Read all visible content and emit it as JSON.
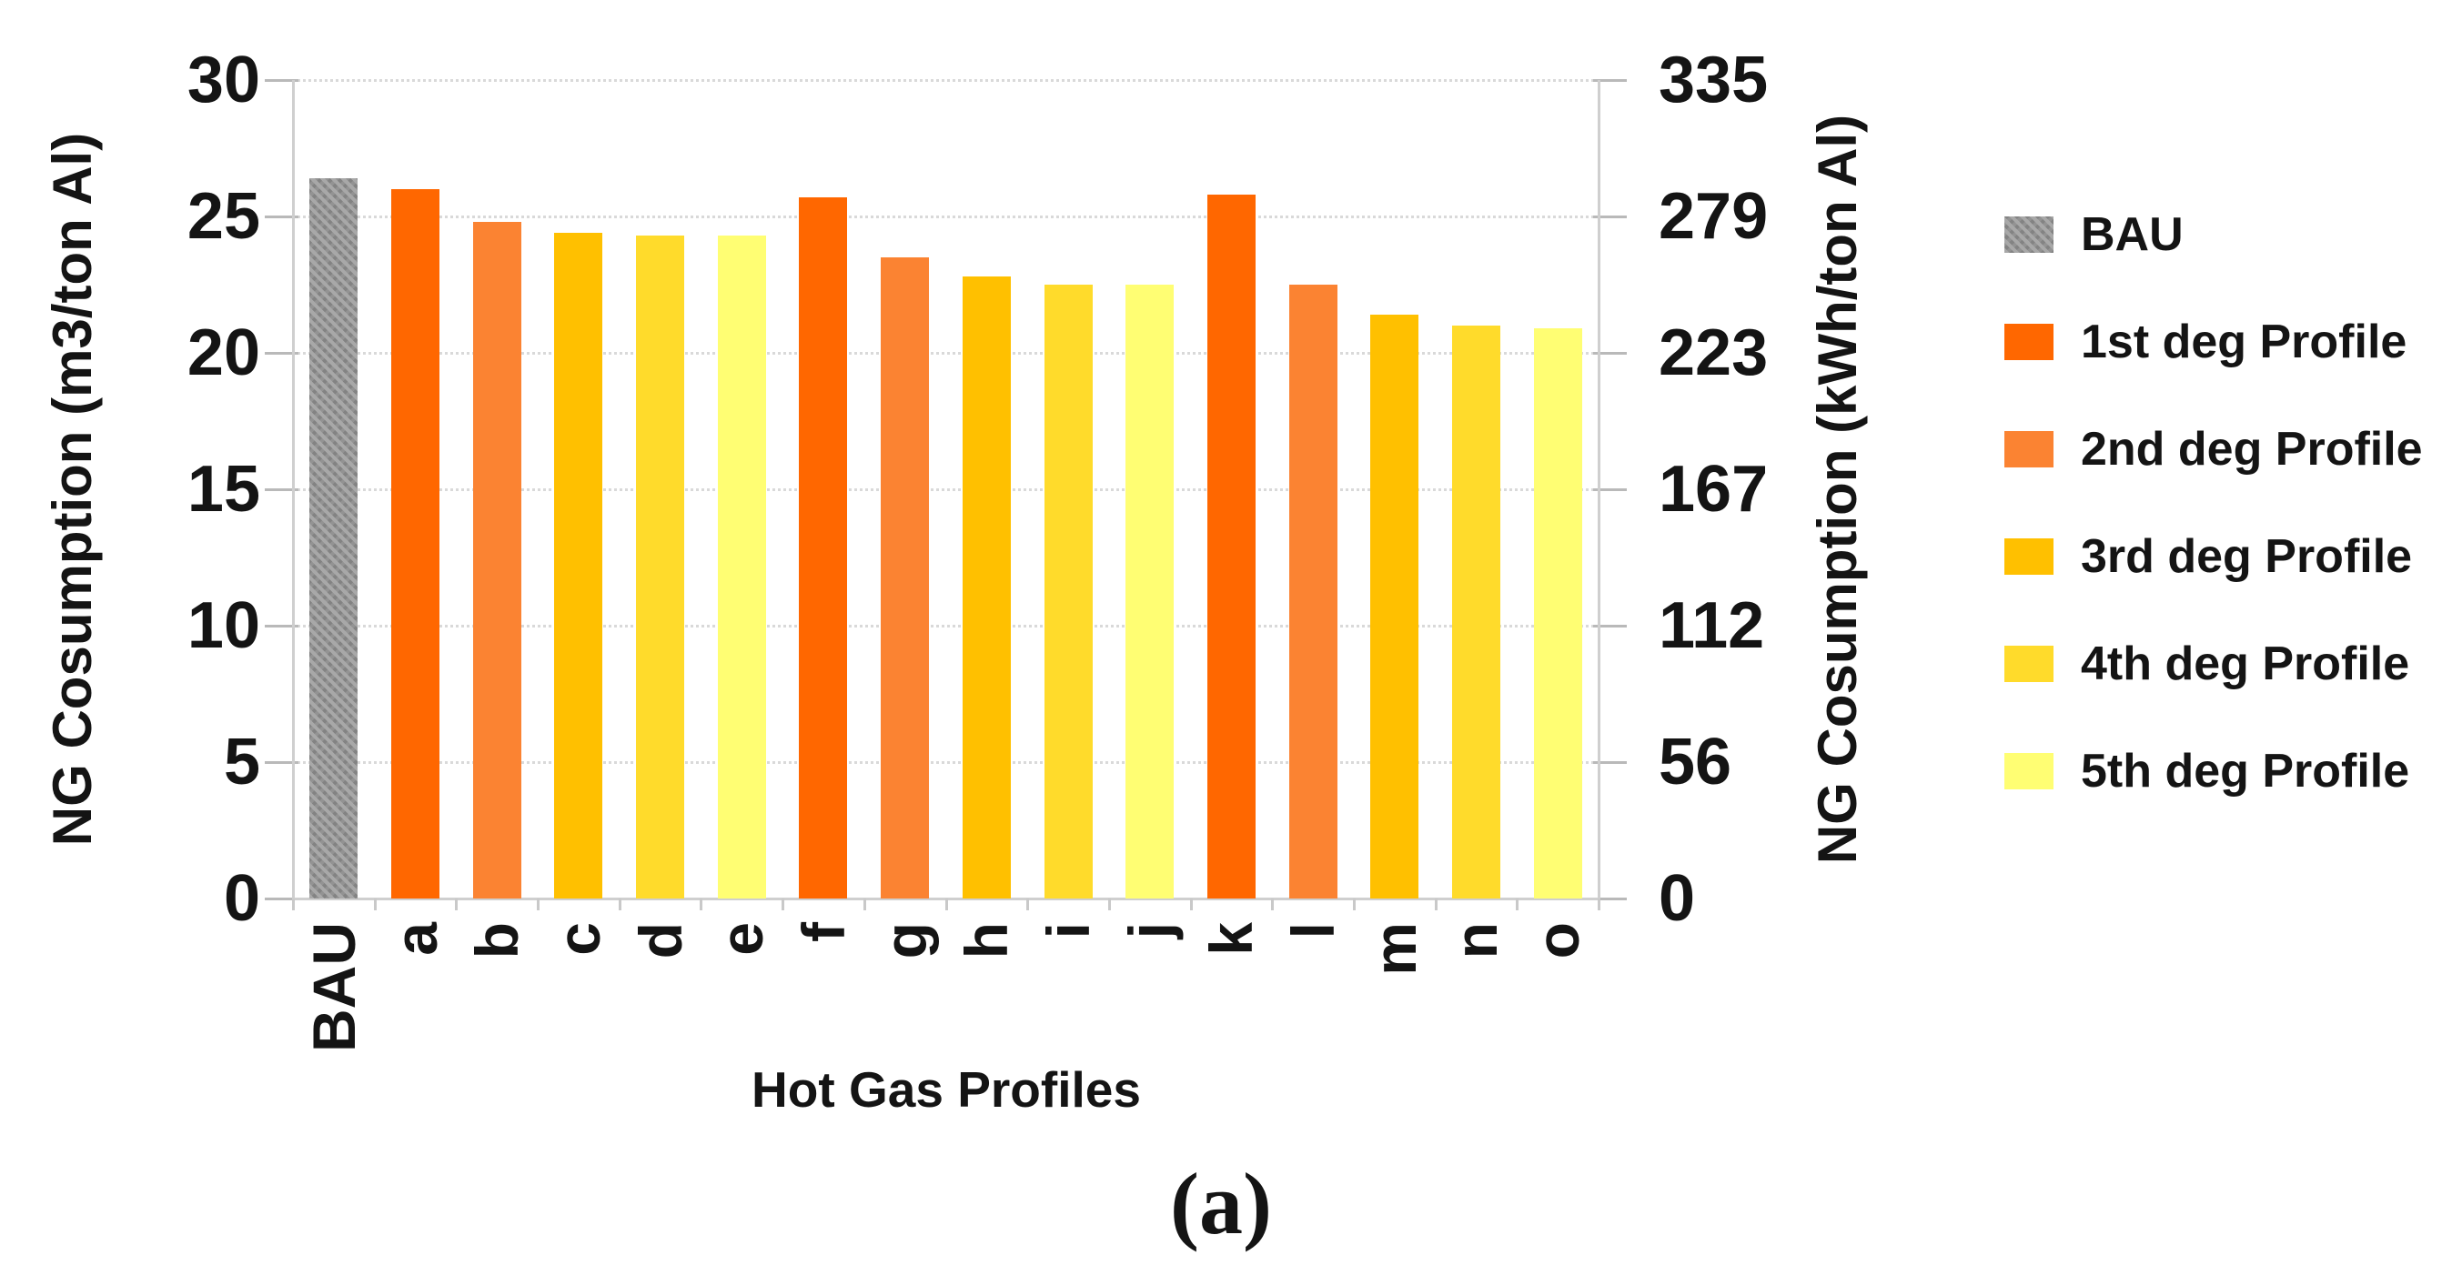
{
  "figure": {
    "caption": "(a)",
    "background": "#ffffff"
  },
  "chart_data": {
    "type": "bar",
    "title": "",
    "xlabel": "Hot Gas Profiles",
    "ylabel_left": "NG Cosumption (m3/ton Al)",
    "ylabel_right": "NG Cosumption (kWh/ton Al)",
    "categories": [
      "BAU",
      "a",
      "b",
      "c",
      "d",
      "e",
      "f",
      "g",
      "h",
      "i",
      "j",
      "k",
      "l",
      "m",
      "n",
      "o"
    ],
    "values_m3_per_ton": [
      26.4,
      26.0,
      24.8,
      24.4,
      24.3,
      24.3,
      25.7,
      23.5,
      22.8,
      22.5,
      22.5,
      25.8,
      22.5,
      21.4,
      21.0,
      20.9
    ],
    "values_kwh_per_ton_approx": [
      295,
      290,
      277,
      272,
      271,
      271,
      287,
      262,
      255,
      251,
      251,
      288,
      251,
      239,
      235,
      233
    ],
    "series_key_per_bar": [
      "bau",
      "s1",
      "s2",
      "s3",
      "s4",
      "s5",
      "s1",
      "s2",
      "s3",
      "s4",
      "s5",
      "s1",
      "s2",
      "s3",
      "s4",
      "s5"
    ],
    "y_axis_left": {
      "ticks": [
        0,
        5,
        10,
        15,
        20,
        25,
        30
      ],
      "min": 0,
      "max": 30
    },
    "y_axis_right": {
      "ticks": [
        0,
        56,
        112,
        167,
        223,
        279,
        335
      ],
      "min": 0,
      "max": 335
    },
    "grid": "horizontal-dotted",
    "legend_position": "right",
    "legend": [
      {
        "key": "bau",
        "label": "BAU",
        "color": "#939393",
        "pattern": "checker"
      },
      {
        "key": "s1",
        "label": "1st deg Profile",
        "color": "#FF6700",
        "pattern": "solid"
      },
      {
        "key": "s2",
        "label": "2nd deg Profile",
        "color": "#FB8332",
        "pattern": "solid"
      },
      {
        "key": "s3",
        "label": "3rd deg Profile",
        "color": "#FFC000",
        "pattern": "solid"
      },
      {
        "key": "s4",
        "label": "4th deg Profile",
        "color": "#FFDB2B",
        "pattern": "solid"
      },
      {
        "key": "s5",
        "label": "5th deg Profile",
        "color": "#FFFE73",
        "pattern": "solid"
      }
    ],
    "colors": {
      "gridline": "#d9d9d9",
      "axis_line": "#cfcfcf",
      "tick_mark": "#b9b9b9",
      "text": "#141414"
    }
  }
}
